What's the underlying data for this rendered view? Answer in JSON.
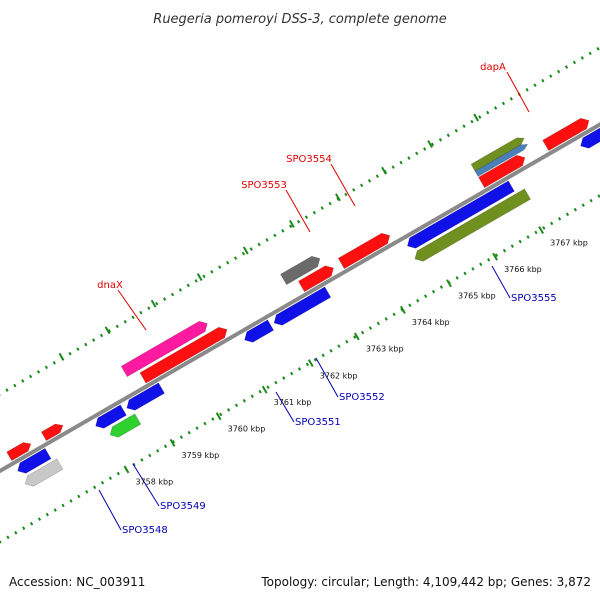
{
  "title": "Ruegeria pomeroyi DSS-3, complete genome",
  "footer": {
    "accession": "Accession: NC_003911",
    "topology": "Topology: circular; Length: 4,109,442 bp; Genes: 3,872"
  },
  "colors": {
    "backbone": "#8a8a8a",
    "tick_green": "#1a8a1a",
    "red": "#ff1010",
    "blue": "#1010e8",
    "pink": "#ff1aa0",
    "olive": "#6f8f1f",
    "gray": "#6a6a6a",
    "lightgray": "#c8c8c8",
    "green": "#30d030",
    "steel": "#4a7fb8",
    "label_red": "#e00000",
    "label_blue": "#0000b4"
  },
  "ticks": [
    {
      "label": "3758 kbp"
    },
    {
      "label": "3759 kbp"
    },
    {
      "label": "3760 kbp"
    },
    {
      "label": "3761 kbp"
    },
    {
      "label": "3762 kbp"
    },
    {
      "label": "3763 kbp"
    },
    {
      "label": "3764 kbp"
    },
    {
      "label": "3765 kbp"
    },
    {
      "label": "3766 kbp"
    },
    {
      "label": "3767 kbp"
    }
  ],
  "gene_labels": [
    {
      "name": "dnaX",
      "strand": "forward"
    },
    {
      "name": "SPO3553",
      "strand": "forward"
    },
    {
      "name": "SPO3554",
      "strand": "forward"
    },
    {
      "name": "dapA",
      "strand": "forward"
    },
    {
      "name": "SPO3548",
      "strand": "reverse"
    },
    {
      "name": "SPO3549",
      "strand": "reverse"
    },
    {
      "name": "SPO3551",
      "strand": "reverse"
    },
    {
      "name": "SPO3552",
      "strand": "reverse"
    },
    {
      "name": "SPO3555",
      "strand": "reverse"
    }
  ]
}
